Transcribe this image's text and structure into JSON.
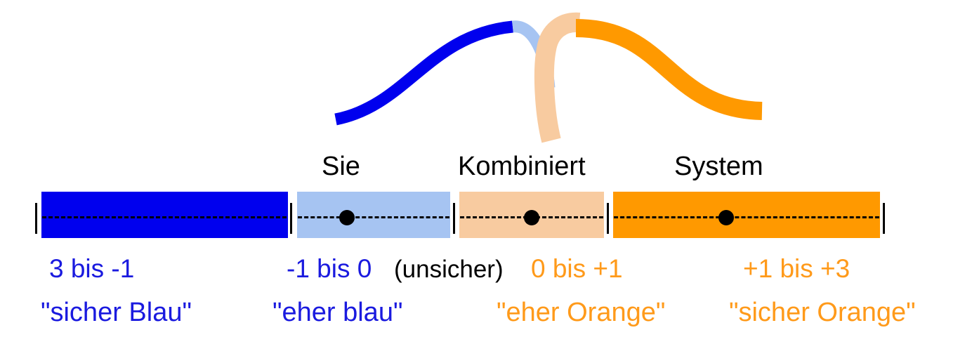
{
  "labels": {
    "sie": "Sie",
    "kombiniert": "Kombiniert",
    "system": "System"
  },
  "ranges": {
    "sure_blue": "3 bis -1",
    "rather_blue": "-1 bis 0",
    "uncertain": "(unsicher)",
    "rather_orange": "0 bis +1",
    "sure_orange": "+1 bis +3"
  },
  "descriptions": {
    "sure_blue": "\"sicher Blau\"",
    "rather_blue": "\"eher blau\"",
    "rather_orange": "\"eher Orange\"",
    "sure_orange": "\"sicher Orange\""
  },
  "colors": {
    "sure_blue": "#0000ee",
    "light_blue": "#a6c4f2",
    "light_orange": "#f8cba0",
    "orange": "#ff9900",
    "text_blue": "#1a1adf",
    "text_orange": "#ff9a1a",
    "black": "#000000"
  }
}
